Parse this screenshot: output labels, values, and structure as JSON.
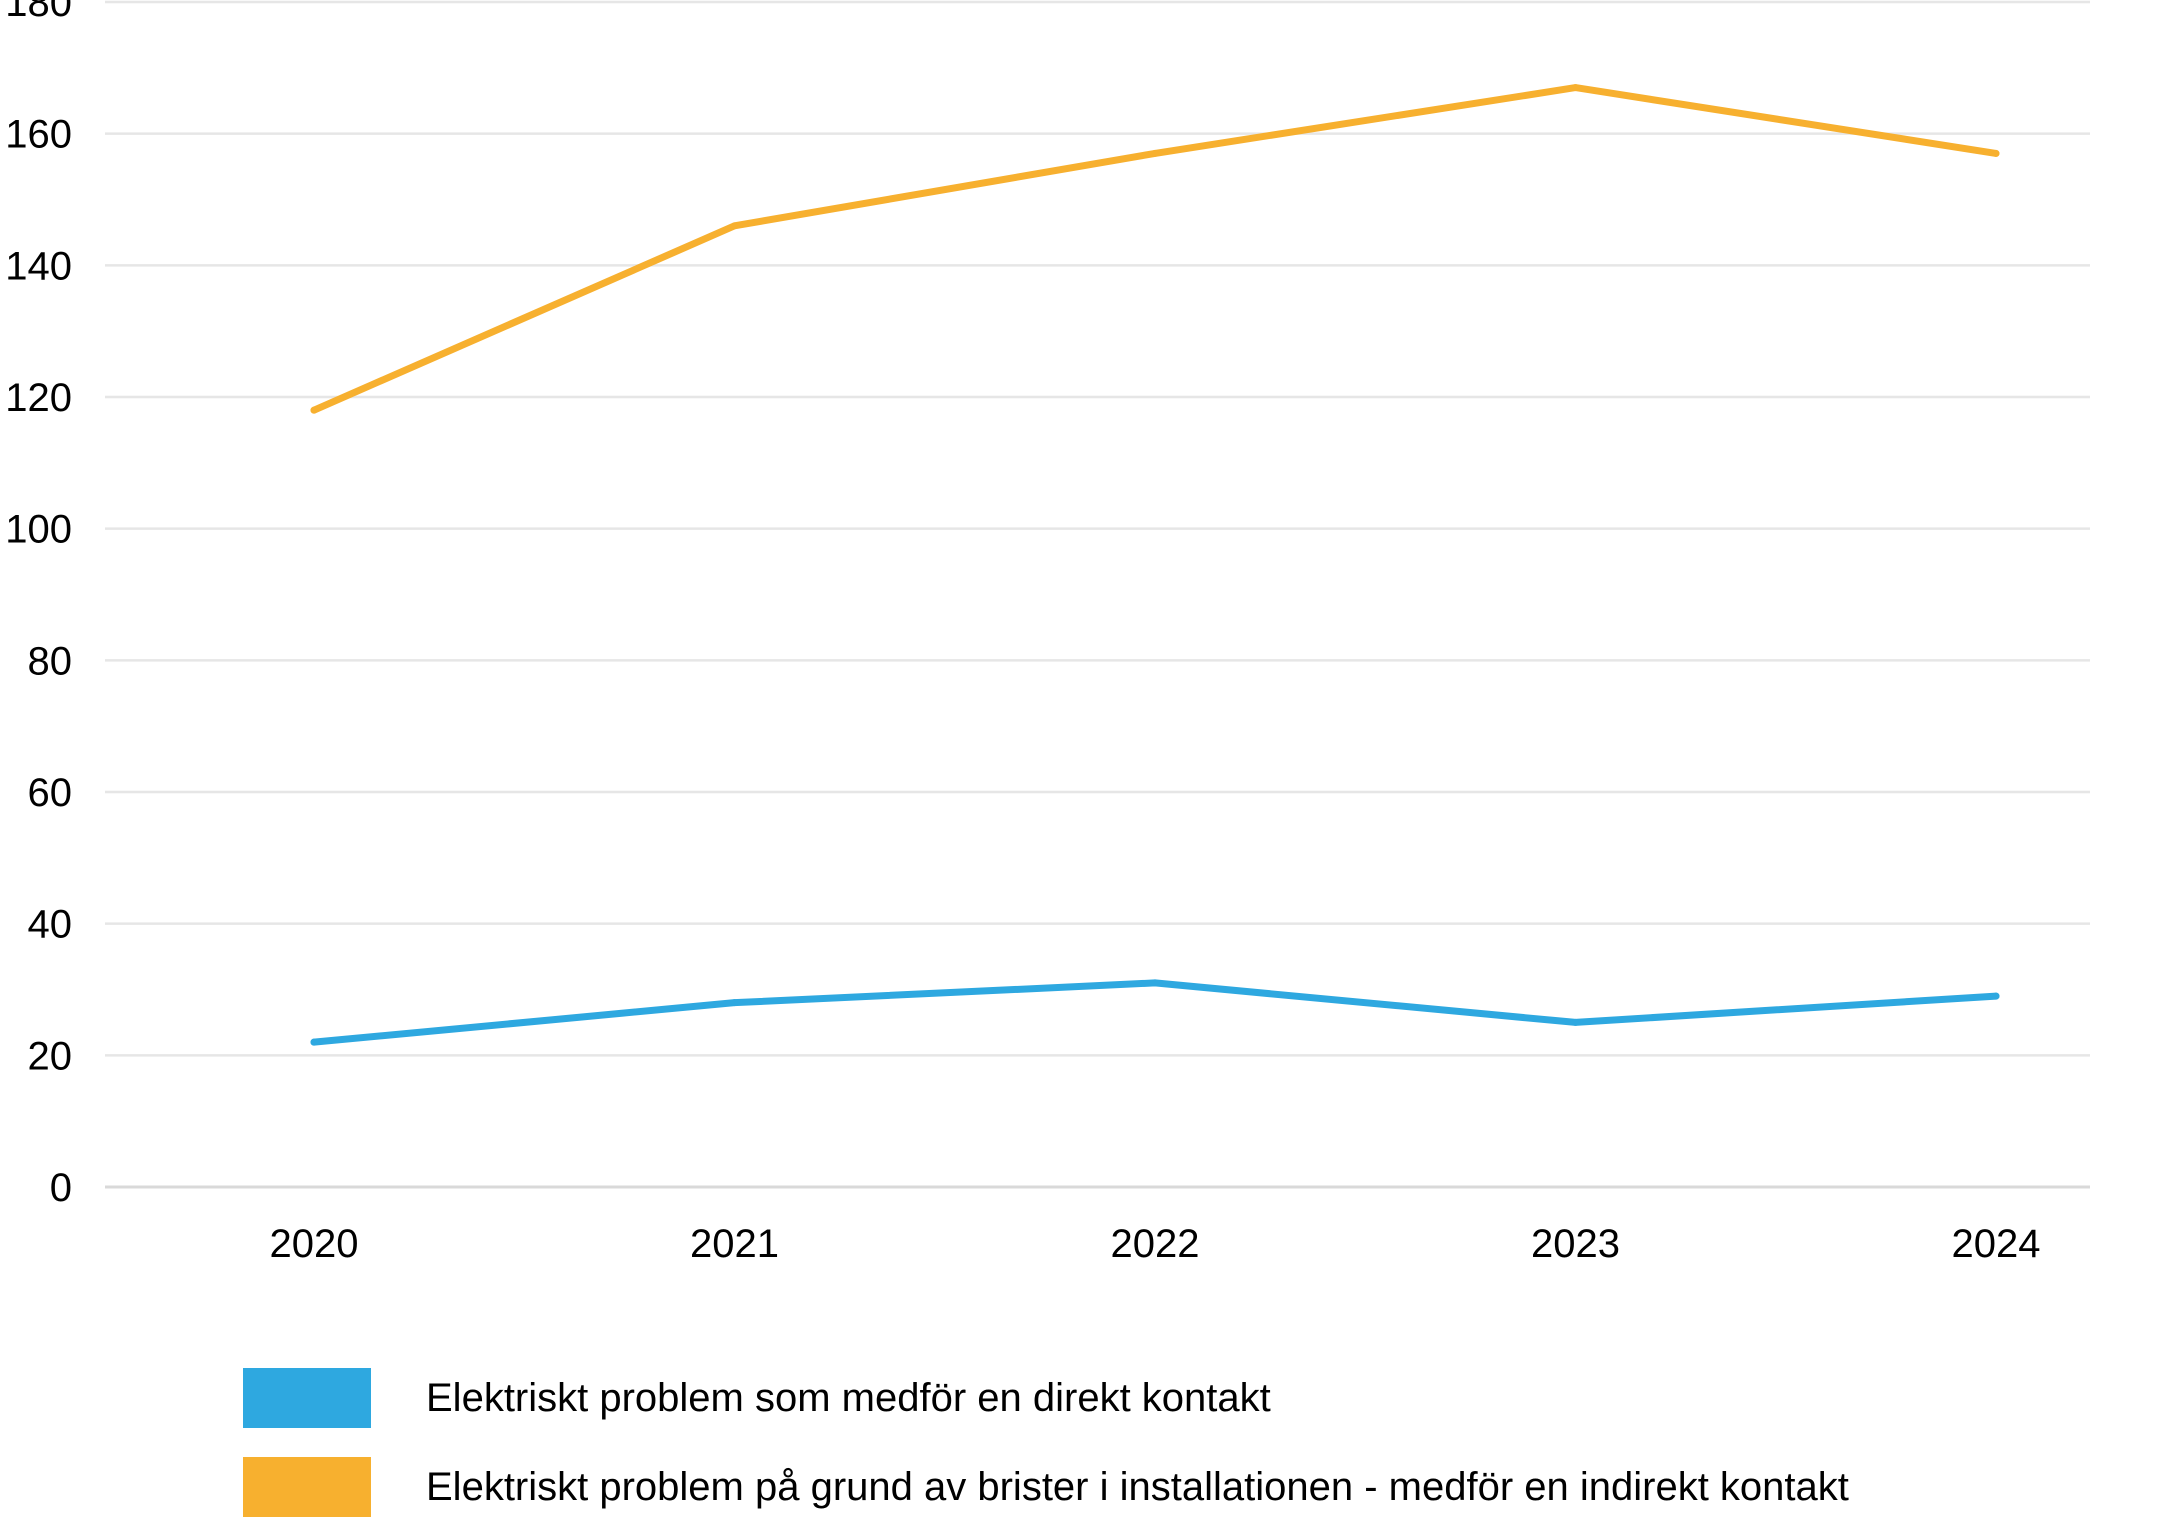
{
  "chart_data": {
    "type": "line",
    "title": "",
    "xlabel": "",
    "ylabel": "",
    "categories": [
      "2020",
      "2021",
      "2022",
      "2023",
      "2024"
    ],
    "ylim": [
      0,
      180
    ],
    "yticks": [
      0,
      20,
      40,
      60,
      80,
      100,
      120,
      140,
      160,
      180
    ],
    "grid": true,
    "legend_position": "bottom",
    "series": [
      {
        "name": "Elektriskt problem som medför en direkt kontakt",
        "color": "#2ea8e0",
        "values": [
          22,
          28,
          31,
          25,
          29
        ]
      },
      {
        "name": "Elektriskt problem på grund av brister i installationen - medför en indirekt kontakt",
        "color": "#f7b02f",
        "values": [
          118,
          146,
          157,
          167,
          157
        ]
      }
    ]
  }
}
